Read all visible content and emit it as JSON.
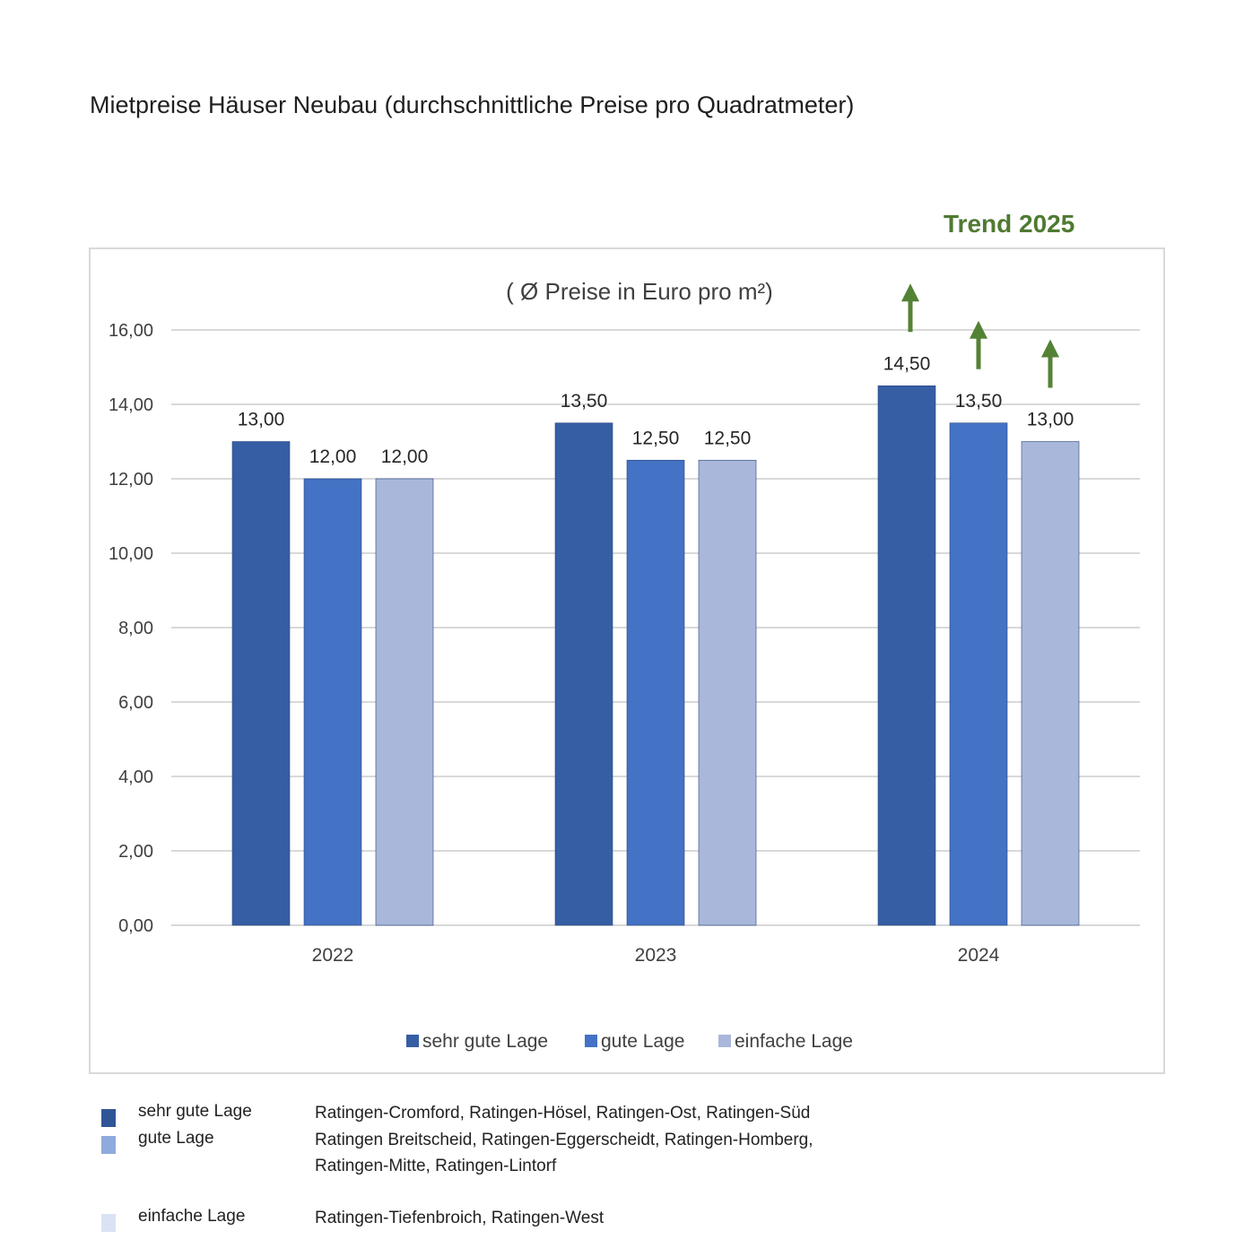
{
  "page": {
    "title": "Mietpreise Häuser Neubau (durchschnittliche Preise pro Quadratmeter)",
    "trend_label": "Trend 2025"
  },
  "colors": {
    "sehr_gute_lage": "#365ea4",
    "gute_lage": "#4472c4",
    "einfache_lage": "#a9b7da",
    "trend_arrow": "#548235",
    "gridline": "#d9d9d9"
  },
  "chart_data": {
    "type": "bar",
    "title": "( Ø Preise in Euro pro m²)",
    "categories": [
      "2022",
      "2023",
      "2024"
    ],
    "series": [
      {
        "name": "sehr gute Lage",
        "color": "#365ea4",
        "values": [
          13.0,
          13.5,
          14.5
        ],
        "labels": [
          "13,00",
          "13,50",
          "14,50"
        ]
      },
      {
        "name": "gute Lage",
        "color": "#4472c4",
        "values": [
          12.0,
          12.5,
          13.5
        ],
        "labels": [
          "12,00",
          "12,50",
          "13,50"
        ]
      },
      {
        "name": "einfache Lage",
        "color": "#a9b7da",
        "values": [
          12.0,
          12.5,
          13.0
        ],
        "labels": [
          "12,00",
          "12,50",
          "13,00"
        ]
      }
    ],
    "ylim": [
      0,
      16
    ],
    "yticks": [
      0,
      2,
      4,
      6,
      8,
      10,
      12,
      14,
      16
    ],
    "ytick_labels": [
      "0,00",
      "2,00",
      "4,00",
      "6,00",
      "8,00",
      "10,00",
      "12,00",
      "14,00",
      "16,00"
    ],
    "grid": true,
    "legend_position": "bottom",
    "trend_arrows": {
      "category": "2024",
      "direction": "up",
      "series": [
        "sehr gute Lage",
        "gute Lage",
        "einfache Lage"
      ]
    }
  },
  "key": [
    {
      "name": "sehr gute Lage",
      "swatch_color": "#2f5597",
      "places": [
        "Ratingen-Cromford, Ratingen-Hösel, Ratingen-Ost, Ratingen-Süd"
      ]
    },
    {
      "name": "gute Lage",
      "swatch_color": "#8faadc",
      "places": [
        "Ratingen Breitscheid, Ratingen-Eggerscheidt, Ratingen-Homberg,",
        "Ratingen-Mitte, Ratingen-Lintorf"
      ]
    },
    {
      "name": "einfache Lage",
      "swatch_color": "#dae3f3",
      "places": [
        "Ratingen-Tiefenbroich, Ratingen-West"
      ]
    }
  ]
}
